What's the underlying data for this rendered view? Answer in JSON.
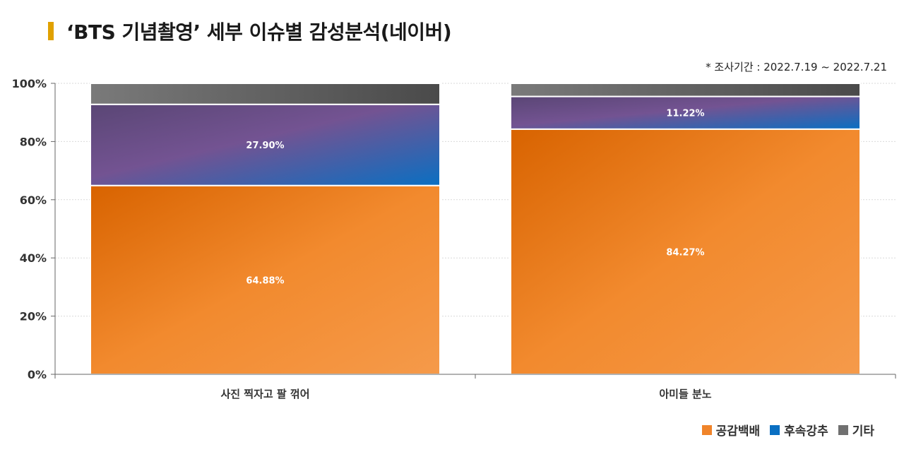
{
  "title": {
    "text": "‘BTS 기념촬영’ 세부 이슈별 감성분석(네이버)",
    "accent_color": "#e0a100"
  },
  "period": "* 조사기간 : 2022.7.19 ~ 2022.7.21",
  "colors": {
    "공감백배": "#f0842a",
    "후속강추": "#0a6fc2",
    "기타": "#707070",
    "purple": "#6b4c8a"
  },
  "chart_data": {
    "type": "bar",
    "stacked": true,
    "categories": [
      "사진 찍자고 팔 꺾어",
      "아미들 분노"
    ],
    "series": [
      {
        "name": "공감백배",
        "values": [
          64.88,
          84.27
        ],
        "labels": [
          "64.88%",
          "84.27%"
        ]
      },
      {
        "name": "후속강추",
        "values": [
          27.9,
          11.22
        ],
        "labels": [
          "27.90%",
          "11.22%"
        ]
      },
      {
        "name": "기타",
        "values": [
          7.22,
          4.51
        ],
        "labels": [
          "",
          ""
        ]
      }
    ],
    "yticks": [
      "0%",
      "20%",
      "40%",
      "60%",
      "80%",
      "100%"
    ],
    "ylim": [
      0,
      100
    ],
    "grid": true,
    "legend_position": "bottom-right"
  }
}
